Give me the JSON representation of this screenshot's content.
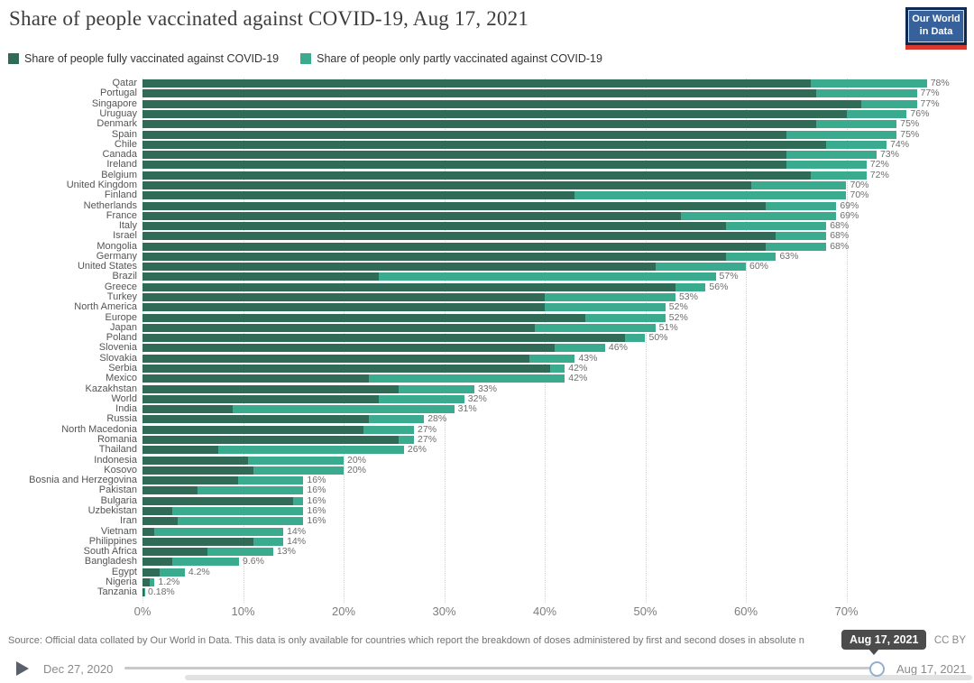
{
  "header": {
    "title": "Share of people vaccinated against COVID-19, Aug 17, 2021",
    "logo_line1": "Our World",
    "logo_line2": "in Data"
  },
  "legend": [
    {
      "label": "Share of people fully vaccinated against COVID-19",
      "color": "#2f6b56"
    },
    {
      "label": "Share of people only partly vaccinated against COVID-19",
      "color": "#3aab8e"
    }
  ],
  "chart_data": {
    "type": "bar",
    "orientation": "horizontal",
    "stacked": true,
    "title": "Share of people vaccinated against COVID-19, Aug 17, 2021",
    "series_names": [
      "Share of people fully vaccinated against COVID-19",
      "Share of people only partly vaccinated against COVID-19"
    ],
    "colors": {
      "fully": "#2f6b56",
      "partly": "#3aab8e"
    },
    "x_ticks": [
      "0%",
      "10%",
      "20%",
      "30%",
      "40%",
      "50%",
      "60%",
      "70%"
    ],
    "xlim": [
      0,
      79
    ],
    "grid": "dotted-vertical",
    "rows": [
      {
        "country": "Qatar",
        "fully": 66.5,
        "partly": 11.5,
        "label": "78%"
      },
      {
        "country": "Portugal",
        "fully": 67,
        "partly": 10,
        "label": "77%"
      },
      {
        "country": "Singapore",
        "fully": 71.5,
        "partly": 5.5,
        "label": "77%"
      },
      {
        "country": "Uruguay",
        "fully": 70,
        "partly": 6,
        "label": "76%"
      },
      {
        "country": "Denmark",
        "fully": 67,
        "partly": 8,
        "label": "75%"
      },
      {
        "country": "Spain",
        "fully": 64,
        "partly": 11,
        "label": "75%"
      },
      {
        "country": "Chile",
        "fully": 68,
        "partly": 6,
        "label": "74%"
      },
      {
        "country": "Canada",
        "fully": 64,
        "partly": 9,
        "label": "73%"
      },
      {
        "country": "Ireland",
        "fully": 64,
        "partly": 8,
        "label": "72%"
      },
      {
        "country": "Belgium",
        "fully": 66.5,
        "partly": 5.5,
        "label": "72%"
      },
      {
        "country": "United Kingdom",
        "fully": 60.5,
        "partly": 9.5,
        "label": "70%"
      },
      {
        "country": "Finland",
        "fully": 43,
        "partly": 27,
        "label": "70%"
      },
      {
        "country": "Netherlands",
        "fully": 62,
        "partly": 7,
        "label": "69%"
      },
      {
        "country": "France",
        "fully": 53.5,
        "partly": 15.5,
        "label": "69%"
      },
      {
        "country": "Italy",
        "fully": 58,
        "partly": 10,
        "label": "68%"
      },
      {
        "country": "Israel",
        "fully": 63,
        "partly": 5,
        "label": "68%"
      },
      {
        "country": "Mongolia",
        "fully": 62,
        "partly": 6,
        "label": "68%"
      },
      {
        "country": "Germany",
        "fully": 58,
        "partly": 5,
        "label": "63%"
      },
      {
        "country": "United States",
        "fully": 51,
        "partly": 9,
        "label": "60%"
      },
      {
        "country": "Brazil",
        "fully": 23.5,
        "partly": 33.5,
        "label": "57%"
      },
      {
        "country": "Greece",
        "fully": 53,
        "partly": 3,
        "label": "56%"
      },
      {
        "country": "Turkey",
        "fully": 40,
        "partly": 13,
        "label": "53%"
      },
      {
        "country": "North America",
        "fully": 40,
        "partly": 12,
        "label": "52%"
      },
      {
        "country": "Europe",
        "fully": 44,
        "partly": 8,
        "label": "52%"
      },
      {
        "country": "Japan",
        "fully": 39,
        "partly": 12,
        "label": "51%"
      },
      {
        "country": "Poland",
        "fully": 48,
        "partly": 2,
        "label": "50%"
      },
      {
        "country": "Slovenia",
        "fully": 41,
        "partly": 5,
        "label": "46%"
      },
      {
        "country": "Slovakia",
        "fully": 38.5,
        "partly": 4.5,
        "label": "43%"
      },
      {
        "country": "Serbia",
        "fully": 40.5,
        "partly": 1.5,
        "label": "42%"
      },
      {
        "country": "Mexico",
        "fully": 22.5,
        "partly": 19.5,
        "label": "42%"
      },
      {
        "country": "Kazakhstan",
        "fully": 25.5,
        "partly": 7.5,
        "label": "33%"
      },
      {
        "country": "World",
        "fully": 23.5,
        "partly": 8.5,
        "label": "32%"
      },
      {
        "country": "India",
        "fully": 9,
        "partly": 22,
        "label": "31%"
      },
      {
        "country": "Russia",
        "fully": 22.5,
        "partly": 5.5,
        "label": "28%"
      },
      {
        "country": "North Macedonia",
        "fully": 22,
        "partly": 5,
        "label": "27%"
      },
      {
        "country": "Romania",
        "fully": 25.5,
        "partly": 1.5,
        "label": "27%"
      },
      {
        "country": "Thailand",
        "fully": 7.5,
        "partly": 18.5,
        "label": "26%"
      },
      {
        "country": "Indonesia",
        "fully": 10.5,
        "partly": 9.5,
        "label": "20%"
      },
      {
        "country": "Kosovo",
        "fully": 11,
        "partly": 9,
        "label": "20%"
      },
      {
        "country": "Bosnia and Herzegovina",
        "fully": 9.5,
        "partly": 6.5,
        "label": "16%"
      },
      {
        "country": "Pakistan",
        "fully": 5.5,
        "partly": 10.5,
        "label": "16%"
      },
      {
        "country": "Bulgaria",
        "fully": 15,
        "partly": 1,
        "label": "16%"
      },
      {
        "country": "Uzbekistan",
        "fully": 3,
        "partly": 13,
        "label": "16%"
      },
      {
        "country": "Iran",
        "fully": 3.5,
        "partly": 12.5,
        "label": "16%"
      },
      {
        "country": "Vietnam",
        "fully": 1.2,
        "partly": 12.8,
        "label": "14%"
      },
      {
        "country": "Philippines",
        "fully": 11,
        "partly": 3,
        "label": "14%"
      },
      {
        "country": "South Africa",
        "fully": 6.5,
        "partly": 6.5,
        "label": "13%"
      },
      {
        "country": "Bangladesh",
        "fully": 3,
        "partly": 6.6,
        "label": "9.6%"
      },
      {
        "country": "Egypt",
        "fully": 1.7,
        "partly": 2.5,
        "label": "4.2%"
      },
      {
        "country": "Nigeria",
        "fully": 0.7,
        "partly": 0.5,
        "label": "1.2%"
      },
      {
        "country": "Tanzania",
        "fully": 0.14,
        "partly": 0.04,
        "label": "0.18%"
      }
    ]
  },
  "footer": {
    "source": "Source: Official data collated by Our World in Data. This data is only available for countries which report the breakdown of doses administered by first and second doses in absolute n",
    "license": "CC BY",
    "tooltip_date": "Aug 17, 2021"
  },
  "timeline": {
    "start_date": "Dec 27, 2020",
    "end_date": "Aug 17, 2021"
  }
}
